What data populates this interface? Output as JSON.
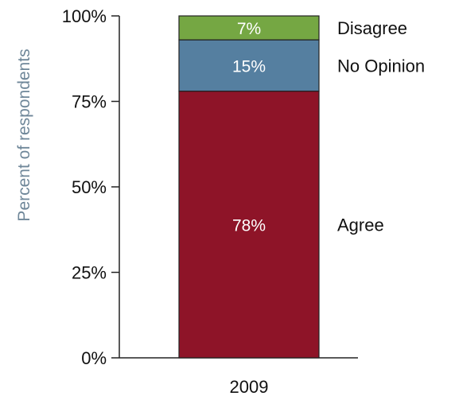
{
  "chart_data": {
    "type": "bar",
    "stacked": true,
    "categories": [
      "2009"
    ],
    "series": [
      {
        "name": "Agree",
        "values": [
          78
        ],
        "color": "#8e1428",
        "data_label": "78%"
      },
      {
        "name": "No Opinion",
        "values": [
          15
        ],
        "color": "#557fa0",
        "data_label": "15%"
      },
      {
        "name": "Disagree",
        "values": [
          7
        ],
        "color": "#75a743",
        "data_label": "7%"
      }
    ],
    "ylabel": "Percent of respondents",
    "xlabel": "",
    "ylim": [
      0,
      100
    ],
    "yticks": [
      0,
      25,
      50,
      75,
      100
    ],
    "ytick_labels": [
      "0%",
      "25%",
      "50%",
      "75%",
      "100%"
    ],
    "grid": false,
    "legend": "labels to the right of segments"
  }
}
